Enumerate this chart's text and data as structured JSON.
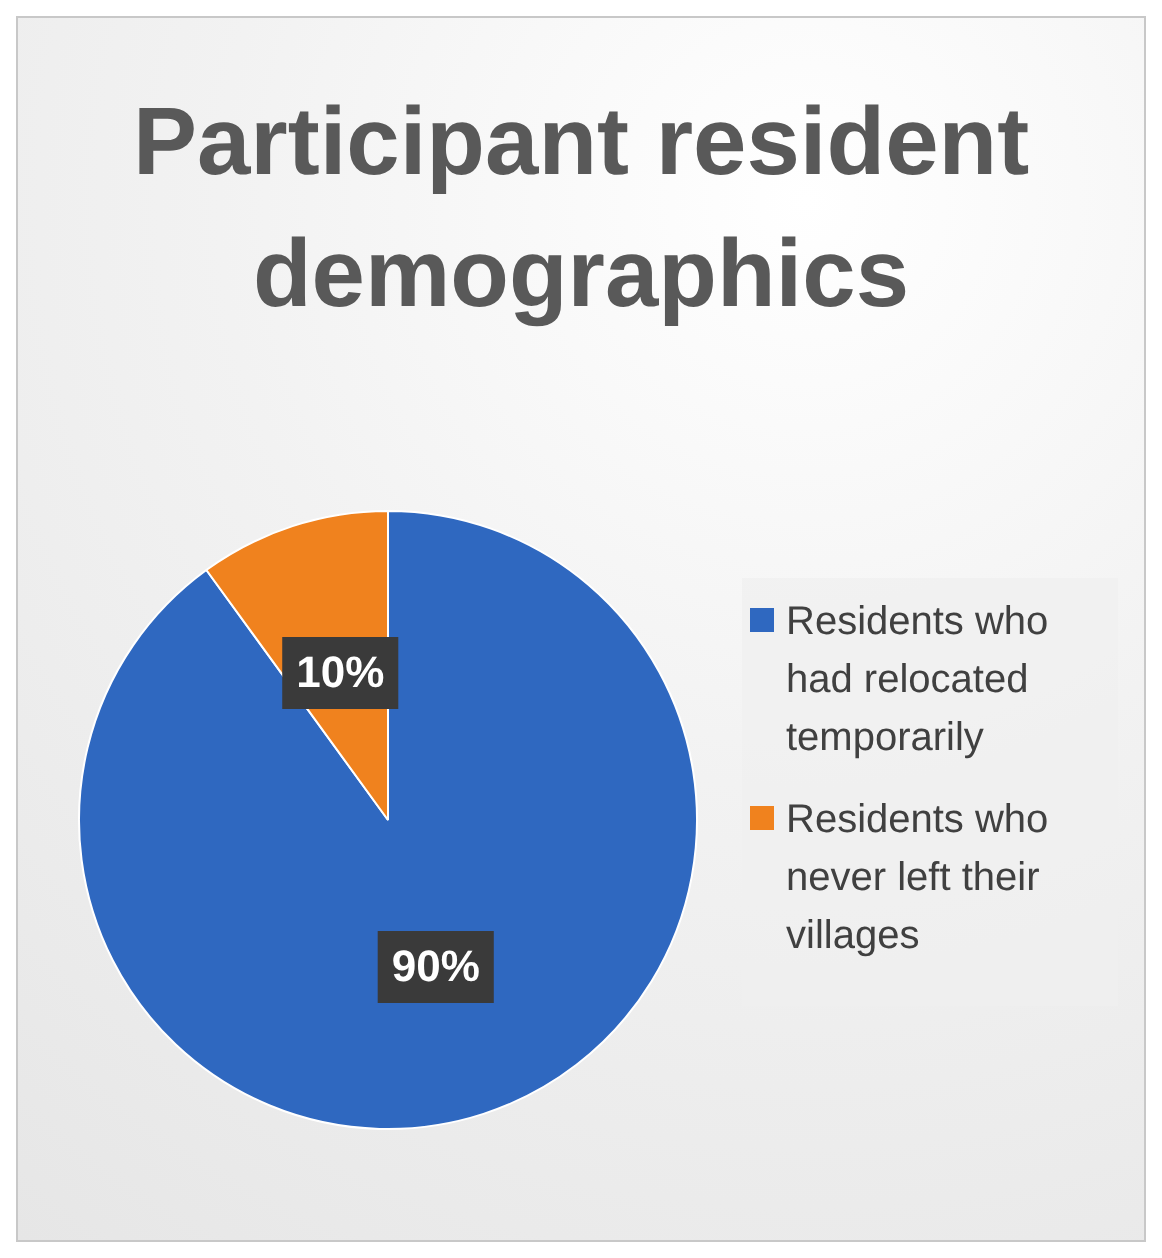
{
  "chart_data": {
    "type": "pie",
    "title": "Participant resident demographics",
    "categories": [
      "Residents who had relocated temporarily",
      "Residents who never left their villages"
    ],
    "values": [
      90,
      10
    ],
    "colors": [
      "#2f68c0",
      "#f0821e"
    ],
    "value_labels": [
      "90%",
      "10%"
    ],
    "legend": "right"
  }
}
